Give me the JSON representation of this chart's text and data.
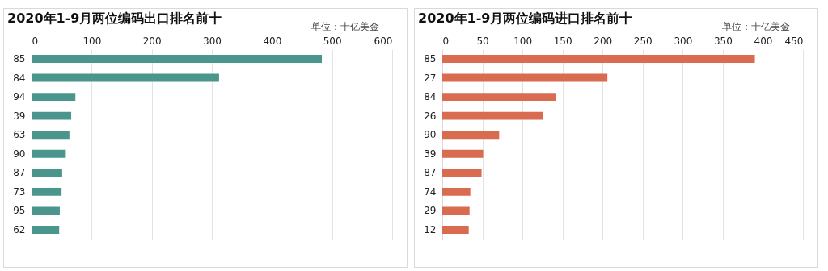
{
  "chart_data": [
    {
      "type": "bar",
      "orientation": "horizontal",
      "title": "2020年1-9月两位编码出口排名前十",
      "annotations": [
        "单位：十亿美金"
      ],
      "categories": [
        "85",
        "84",
        "94",
        "39",
        "63",
        "90",
        "87",
        "73",
        "95",
        "62"
      ],
      "values": [
        483,
        312,
        73,
        66,
        63,
        57,
        51,
        50,
        47,
        46
      ],
      "color": "#4a968c",
      "xlim": [
        0,
        600
      ],
      "xticks": [
        0,
        100,
        200,
        300,
        400,
        500,
        600
      ],
      "grid": "x"
    },
    {
      "type": "bar",
      "orientation": "horizontal",
      "title": "2020年1-9月两位编码进口排名前十",
      "annotations": [
        "单位：十亿美金"
      ],
      "categories": [
        "85",
        "27",
        "84",
        "26",
        "90",
        "39",
        "87",
        "74",
        "29",
        "12"
      ],
      "values": [
        390,
        206,
        142,
        126,
        71,
        51,
        49,
        35,
        34,
        33
      ],
      "color": "#d86b50",
      "xlim": [
        0,
        450
      ],
      "xticks": [
        0,
        50,
        100,
        150,
        200,
        250,
        300,
        350,
        400,
        450
      ],
      "grid": "x"
    }
  ]
}
